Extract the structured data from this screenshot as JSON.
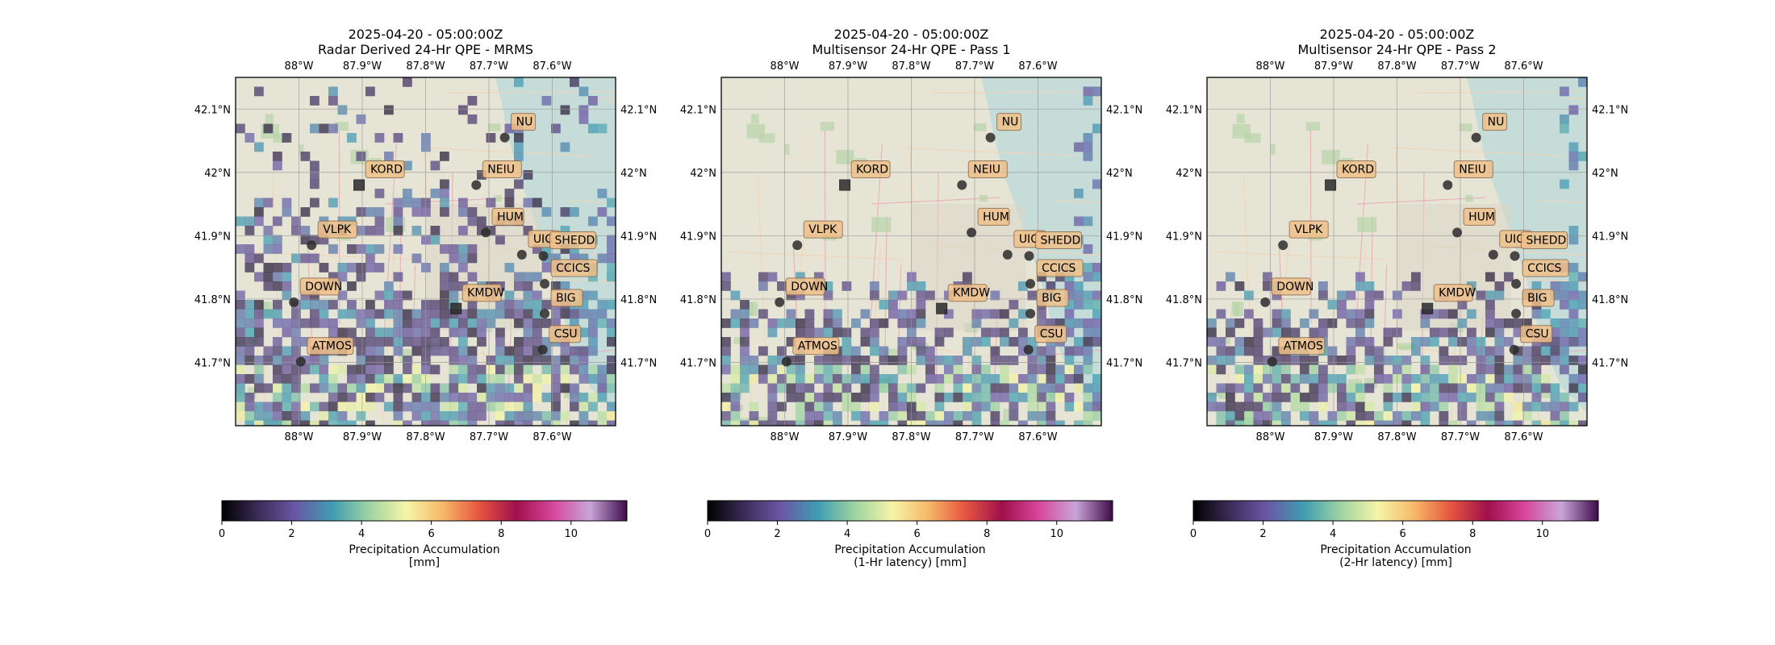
{
  "figure": {
    "panels": [
      {
        "title_line1": "2025-04-20 - 05:00:00Z",
        "title_line2": "Radar Derived 24-Hr QPE - MRMS",
        "colorbar_label_line1": "Precipitation Accumulation",
        "colorbar_label_line2": "[mm]",
        "coverage": "wide"
      },
      {
        "title_line1": "2025-04-20 - 05:00:00Z",
        "title_line2": "Multisensor 24-Hr QPE - Pass 1",
        "colorbar_label_line1": "Precipitation Accumulation",
        "colorbar_label_line2": "(1-Hr latency) [mm]",
        "coverage": "south"
      },
      {
        "title_line1": "2025-04-20 - 05:00:00Z",
        "title_line2": "Multisensor 24-Hr QPE - Pass 2",
        "colorbar_label_line1": "Precipitation Accumulation",
        "colorbar_label_line2": "(2-Hr latency) [mm]",
        "coverage": "south"
      }
    ],
    "lon_ticks": [
      {
        "value": -88.0,
        "label": "88°W"
      },
      {
        "value": -87.9,
        "label": "87.9°W"
      },
      {
        "value": -87.8,
        "label": "87.8°W"
      },
      {
        "value": -87.7,
        "label": "87.7°W"
      },
      {
        "value": -87.6,
        "label": "87.6°W"
      }
    ],
    "lat_ticks": [
      {
        "value": 42.1,
        "label": "42.1°N"
      },
      {
        "value": 42.0,
        "label": "42°N"
      },
      {
        "value": 41.9,
        "label": "41.9°N"
      },
      {
        "value": 41.8,
        "label": "41.8°N"
      },
      {
        "value": 41.7,
        "label": "41.7°N"
      }
    ],
    "extent": {
      "lon_min": -88.1,
      "lon_max": -87.5,
      "lat_min": 41.6,
      "lat_max": 42.15
    },
    "stations": [
      {
        "name": "NU",
        "lon": -87.675,
        "lat": 42.055,
        "marker": "circle"
      },
      {
        "name": "KORD",
        "lon": -87.905,
        "lat": 41.98,
        "marker": "square"
      },
      {
        "name": "NEIU",
        "lon": -87.72,
        "lat": 41.98,
        "marker": "circle"
      },
      {
        "name": "HUM",
        "lon": -87.705,
        "lat": 41.905,
        "marker": "circle"
      },
      {
        "name": "VLPK",
        "lon": -87.98,
        "lat": 41.885,
        "marker": "circle"
      },
      {
        "name": "UIC",
        "lon": -87.648,
        "lat": 41.87,
        "marker": "circle"
      },
      {
        "name": "SHEDD",
        "lon": -87.614,
        "lat": 41.868,
        "marker": "circle"
      },
      {
        "name": "CCICS",
        "lon": -87.612,
        "lat": 41.824,
        "marker": "circle"
      },
      {
        "name": "DOWN",
        "lon": -88.008,
        "lat": 41.795,
        "marker": "circle"
      },
      {
        "name": "KMDW",
        "lon": -87.752,
        "lat": 41.785,
        "marker": "square"
      },
      {
        "name": "BIG",
        "lon": -87.612,
        "lat": 41.777,
        "marker": "circle"
      },
      {
        "name": "CSU",
        "lon": -87.615,
        "lat": 41.72,
        "marker": "circle"
      },
      {
        "name": "ATMOS",
        "lon": -87.997,
        "lat": 41.701,
        "marker": "circle"
      }
    ],
    "colorbar": {
      "vmin": 0,
      "vmax": 11.6,
      "ticks": [
        0,
        2,
        4,
        6,
        8,
        10
      ],
      "colormap": "spectral-dark",
      "stops": [
        "#000000",
        "#3b2d5a",
        "#6a58a6",
        "#3f9db2",
        "#9ed4a1",
        "#f5f5a8",
        "#f7b86a",
        "#e5553f",
        "#a0104c",
        "#d7479c",
        "#c9a5d8",
        "#3d0b4a"
      ]
    },
    "colors": {
      "land": "#e6e4d5",
      "water": "#c6dcd9",
      "label_fill": "#f0c08a",
      "label_border": "#8a6a4a",
      "marker": "#2b2b2b"
    }
  }
}
